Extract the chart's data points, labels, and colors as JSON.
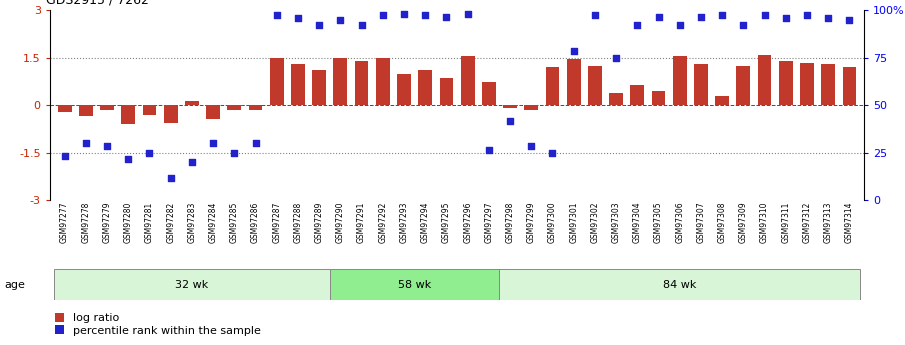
{
  "title": "GDS2915 / 7262",
  "samples": [
    "GSM97277",
    "GSM97278",
    "GSM97279",
    "GSM97280",
    "GSM97281",
    "GSM97282",
    "GSM97283",
    "GSM97284",
    "GSM97285",
    "GSM97286",
    "GSM97287",
    "GSM97288",
    "GSM97289",
    "GSM97290",
    "GSM97291",
    "GSM97292",
    "GSM97293",
    "GSM97294",
    "GSM97295",
    "GSM97296",
    "GSM97297",
    "GSM97298",
    "GSM97299",
    "GSM97300",
    "GSM97301",
    "GSM97302",
    "GSM97303",
    "GSM97304",
    "GSM97305",
    "GSM97306",
    "GSM97307",
    "GSM97308",
    "GSM97309",
    "GSM97310",
    "GSM97311",
    "GSM97312",
    "GSM97313",
    "GSM97314"
  ],
  "log_ratio": [
    -0.2,
    -0.35,
    -0.15,
    -0.6,
    -0.3,
    -0.55,
    0.12,
    -0.45,
    -0.15,
    -0.15,
    1.5,
    1.3,
    1.1,
    1.5,
    1.4,
    1.5,
    1.0,
    1.1,
    0.85,
    1.55,
    0.75,
    -0.08,
    -0.15,
    1.2,
    1.45,
    1.25,
    0.4,
    0.65,
    0.45,
    1.55,
    1.3,
    0.3,
    1.25,
    1.6,
    1.4,
    1.35,
    1.3,
    1.2
  ],
  "percentile": [
    -1.6,
    -1.2,
    -1.3,
    -1.7,
    -1.5,
    -2.3,
    -1.8,
    -1.2,
    -1.5,
    -1.2,
    2.85,
    2.75,
    2.55,
    2.7,
    2.55,
    2.85,
    2.9,
    2.85,
    2.8,
    2.9,
    -1.4,
    -0.5,
    -1.3,
    -1.5,
    1.7,
    2.85,
    1.5,
    2.55,
    2.8,
    2.55,
    2.8,
    2.85,
    2.55,
    2.85,
    2.75,
    2.85,
    2.75,
    2.7
  ],
  "groups": [
    {
      "label": "32 wk",
      "start": 0,
      "end": 13
    },
    {
      "label": "58 wk",
      "start": 13,
      "end": 21
    },
    {
      "label": "84 wk",
      "start": 21,
      "end": 38
    }
  ],
  "bar_color": "#C0392B",
  "dot_color": "#2222CC",
  "bg_color": "#FFFFFF",
  "ylim_left": [
    -3,
    3
  ],
  "yticks_left": [
    -3,
    -1.5,
    0,
    1.5,
    3
  ],
  "right_ticks_pos": [
    -3,
    -1.5,
    0,
    1.5,
    3
  ],
  "right_tick_labels": [
    "0",
    "25",
    "50",
    "75",
    "100%"
  ],
  "group_colors": [
    "#d8f5d8",
    "#90ee90",
    "#d8f5d8"
  ],
  "age_label": "age",
  "legend_items": [
    {
      "color": "#C0392B",
      "label": "log ratio"
    },
    {
      "color": "#2222CC",
      "label": "percentile rank within the sample"
    }
  ]
}
